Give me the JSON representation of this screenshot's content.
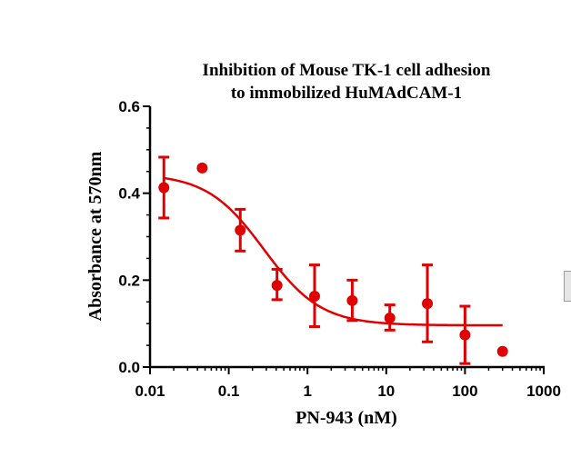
{
  "chart_data": {
    "type": "scatter",
    "title": [
      "Inhibition of Mouse TK-1 cell adhesion",
      "to immobilized HuMAdCAM-1"
    ],
    "xlabel": "PN-943 (nM)",
    "ylabel": "Absorbance at 570nm",
    "xscale": "log",
    "xlim": [
      0.01,
      1000
    ],
    "ylim": [
      0.0,
      0.6
    ],
    "x_ticks": [
      0.01,
      0.1,
      1,
      10,
      100,
      1000
    ],
    "x_tick_labels": [
      "0.01",
      "0.1",
      "1",
      "10",
      "100",
      "1000"
    ],
    "y_ticks": [
      0.0,
      0.2,
      0.4,
      0.6
    ],
    "y_tick_labels": [
      "0.0",
      "0.2",
      "0.4",
      "0.6"
    ],
    "grid": false,
    "color": "#e00000",
    "series": [
      {
        "points": [
          {
            "x": 0.015,
            "y": 0.413,
            "err_low": 0.343,
            "err_high": 0.483
          },
          {
            "x": 0.046,
            "y": 0.458
          },
          {
            "x": 0.14,
            "y": 0.315,
            "err_low": 0.267,
            "err_high": 0.363
          },
          {
            "x": 0.41,
            "y": 0.188,
            "err_low": 0.155,
            "err_high": 0.225
          },
          {
            "x": 1.23,
            "y": 0.163,
            "err_low": 0.093,
            "err_high": 0.235
          },
          {
            "x": 3.7,
            "y": 0.153,
            "err_low": 0.107,
            "err_high": 0.2
          },
          {
            "x": 11.1,
            "y": 0.113,
            "err_low": 0.085,
            "err_high": 0.143
          },
          {
            "x": 33.3,
            "y": 0.146,
            "err_low": 0.058,
            "err_high": 0.235
          },
          {
            "x": 100,
            "y": 0.074,
            "err_low": 0.008,
            "err_high": 0.14
          },
          {
            "x": 300,
            "y": 0.036
          }
        ],
        "fit": {
          "model": "four-parameter logistic",
          "top": 0.445,
          "bottom": 0.096,
          "ec50": 0.28,
          "hill": 1.2,
          "x_range": [
            0.015,
            300
          ]
        }
      }
    ]
  }
}
